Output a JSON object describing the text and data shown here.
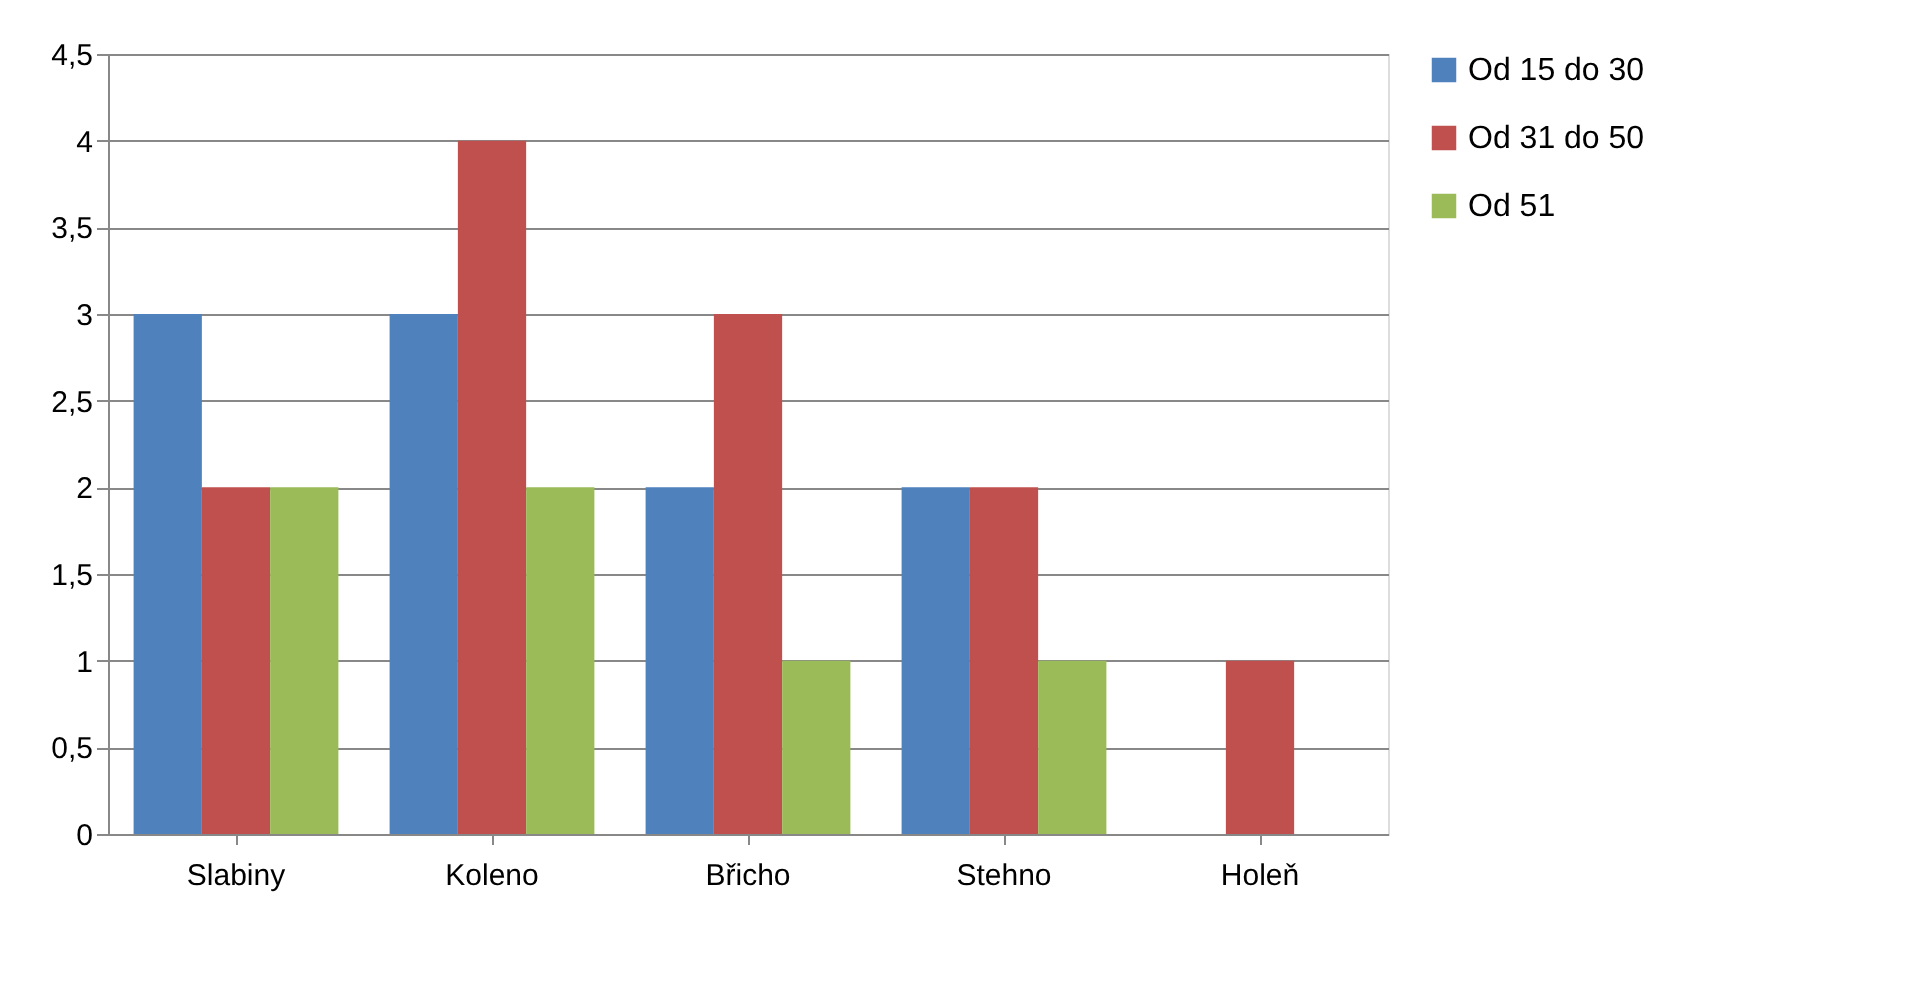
{
  "chart_data": {
    "type": "bar",
    "categories": [
      "Slabiny",
      "Koleno",
      "Břicho",
      "Stehno",
      "Holeň"
    ],
    "series": [
      {
        "name": "Od 15 do 30",
        "color": "#4f81bd",
        "values": [
          3,
          3,
          2,
          2,
          0
        ]
      },
      {
        "name": "Od 31 do 50",
        "color": "#c0504d",
        "values": [
          2,
          4,
          3,
          2,
          1
        ]
      },
      {
        "name": "Od 51",
        "color": "#9bbb59",
        "values": [
          2,
          2,
          1,
          1,
          0
        ]
      }
    ],
    "ylim": [
      0,
      4.5
    ],
    "yticks": [
      0,
      {
        "value": 0.5,
        "label": "0,5"
      },
      1,
      {
        "value": 1.5,
        "label": "1,5"
      },
      2,
      {
        "value": 2.5,
        "label": "2,5"
      },
      3,
      {
        "value": 3.5,
        "label": "3,5"
      },
      4,
      {
        "value": 4.5,
        "label": "4,5"
      }
    ],
    "grid": "y",
    "legend": "right"
  }
}
